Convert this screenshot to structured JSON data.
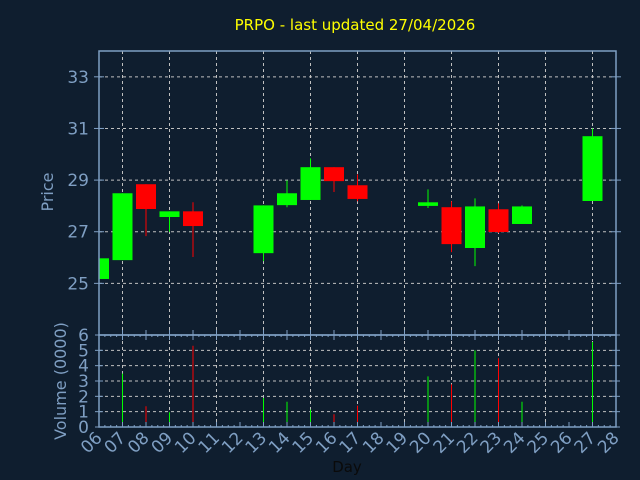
{
  "chart_data": {
    "type": "candlestick",
    "title": "PRPO - last updated 27/04/2026",
    "xlabel": "Day",
    "ylabel": "Price",
    "volume_label": "Volume (0000)",
    "x_ticks": [
      "06",
      "07",
      "08",
      "09",
      "10",
      "11",
      "12",
      "13",
      "14",
      "15",
      "16",
      "17",
      "18",
      "19",
      "20",
      "21",
      "22",
      "23",
      "24",
      "25",
      "26",
      "27",
      "28"
    ],
    "price_ticks": [
      25,
      27,
      29,
      31,
      33
    ],
    "volume_ticks": [
      0,
      1,
      2,
      3,
      4,
      5,
      6
    ],
    "price_range": [
      23,
      34
    ],
    "volume_range": [
      0,
      6
    ],
    "grid": true,
    "colors": {
      "up": "#00ff00",
      "down": "#ff0000",
      "background": "#0f1e2f",
      "axis": "#7f9fc3",
      "title": "#ffff00",
      "grid": "#c0c0c0"
    },
    "candles": [
      {
        "day": "06",
        "open": 25.17,
        "high": 25.97,
        "low": 25.17,
        "close": 25.97,
        "volume": null
      },
      {
        "day": "07",
        "open": 25.9,
        "high": 28.49,
        "low": 25.9,
        "close": 28.49,
        "volume": 3.48
      },
      {
        "day": "08",
        "open": 28.84,
        "high": 28.84,
        "low": 26.83,
        "close": 27.88,
        "volume": 1.35
      },
      {
        "day": "09",
        "open": 27.57,
        "high": 27.79,
        "low": 27.0,
        "close": 27.79,
        "volume": 0.96
      },
      {
        "day": "10",
        "open": 27.79,
        "high": 28.14,
        "low": 26.02,
        "close": 27.22,
        "volume": 5.3
      },
      {
        "day": "13",
        "open": 26.17,
        "high": 28.02,
        "low": 25.86,
        "close": 28.02,
        "volume": 1.89
      },
      {
        "day": "14",
        "open": 28.03,
        "high": 28.99,
        "low": 27.95,
        "close": 28.49,
        "volume": 1.65
      },
      {
        "day": "15",
        "open": 28.23,
        "high": 29.84,
        "low": 28.23,
        "close": 29.5,
        "volume": 1.13
      },
      {
        "day": "16",
        "open": 29.5,
        "high": 29.5,
        "low": 28.54,
        "close": 28.96,
        "volume": 0.83
      },
      {
        "day": "17",
        "open": 28.8,
        "high": 29.22,
        "low": 28.18,
        "close": 28.27,
        "volume": 1.39
      },
      {
        "day": "20",
        "open": 28.0,
        "high": 28.64,
        "low": 27.92,
        "close": 28.14,
        "volume": 3.3
      },
      {
        "day": "21",
        "open": 27.95,
        "high": 28.18,
        "low": 26.21,
        "close": 26.52,
        "volume": 2.78
      },
      {
        "day": "22",
        "open": 26.37,
        "high": 28.29,
        "low": 25.67,
        "close": 27.98,
        "volume": 5.0
      },
      {
        "day": "23",
        "open": 27.87,
        "high": 28.1,
        "low": 26.95,
        "close": 26.99,
        "volume": 4.48
      },
      {
        "day": "24",
        "open": 27.3,
        "high": 28.02,
        "low": 27.3,
        "close": 27.98,
        "volume": 1.65
      },
      {
        "day": "27",
        "open": 28.19,
        "high": 31.0,
        "low": 28.19,
        "close": 30.7,
        "volume": 5.54
      }
    ]
  }
}
